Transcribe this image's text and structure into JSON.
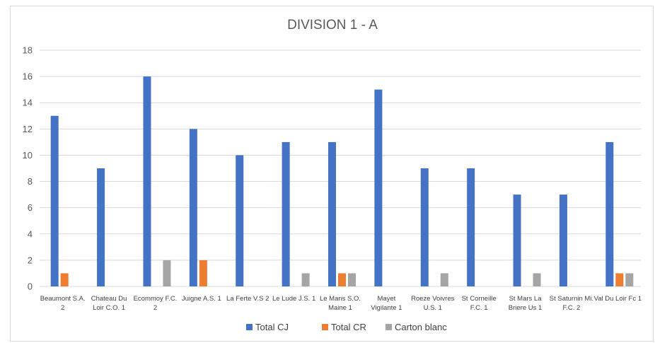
{
  "chart_data": {
    "type": "bar",
    "title": "DIVISION 1 - A",
    "categories": [
      [
        "Beaumont S.A.",
        "2"
      ],
      [
        "Chateau Du",
        "Loir C.O. 1"
      ],
      [
        "Ecommoy F.C.",
        "2"
      ],
      [
        "Juigne A.S. 1"
      ],
      [
        "La Ferte V.S 2"
      ],
      [
        "Le Lude J.S. 1"
      ],
      [
        "Le Mans S.O.",
        "Maine 1"
      ],
      [
        "Mayet",
        "Vigilante 1"
      ],
      [
        "Roeze Voivres",
        "U.S. 1"
      ],
      [
        "St Corneille",
        "F.C. 1"
      ],
      [
        "St Mars La",
        "Briere Us 1"
      ],
      [
        "St Saturnin Mi.",
        "F.C. 2"
      ],
      [
        "Val Du Loir Fc 1"
      ]
    ],
    "series": [
      {
        "name": "Total CJ",
        "color": "#4472C4",
        "values": [
          13,
          9,
          16,
          12,
          10,
          11,
          11,
          15,
          9,
          9,
          7,
          7,
          11
        ]
      },
      {
        "name": "Total CR",
        "color": "#ED7D31",
        "values": [
          1,
          0,
          0,
          2,
          0,
          0,
          1,
          0,
          0,
          0,
          0,
          0,
          1
        ]
      },
      {
        "name": "Carton blanc",
        "color": "#A5A5A5",
        "values": [
          0,
          0,
          2,
          0,
          0,
          1,
          1,
          0,
          1,
          0,
          1,
          0,
          1
        ]
      }
    ],
    "ylim": [
      0,
      18
    ],
    "yticks": [
      0,
      2,
      4,
      6,
      8,
      10,
      12,
      14,
      16,
      18
    ],
    "grid": true,
    "legend_position": "bottom"
  }
}
